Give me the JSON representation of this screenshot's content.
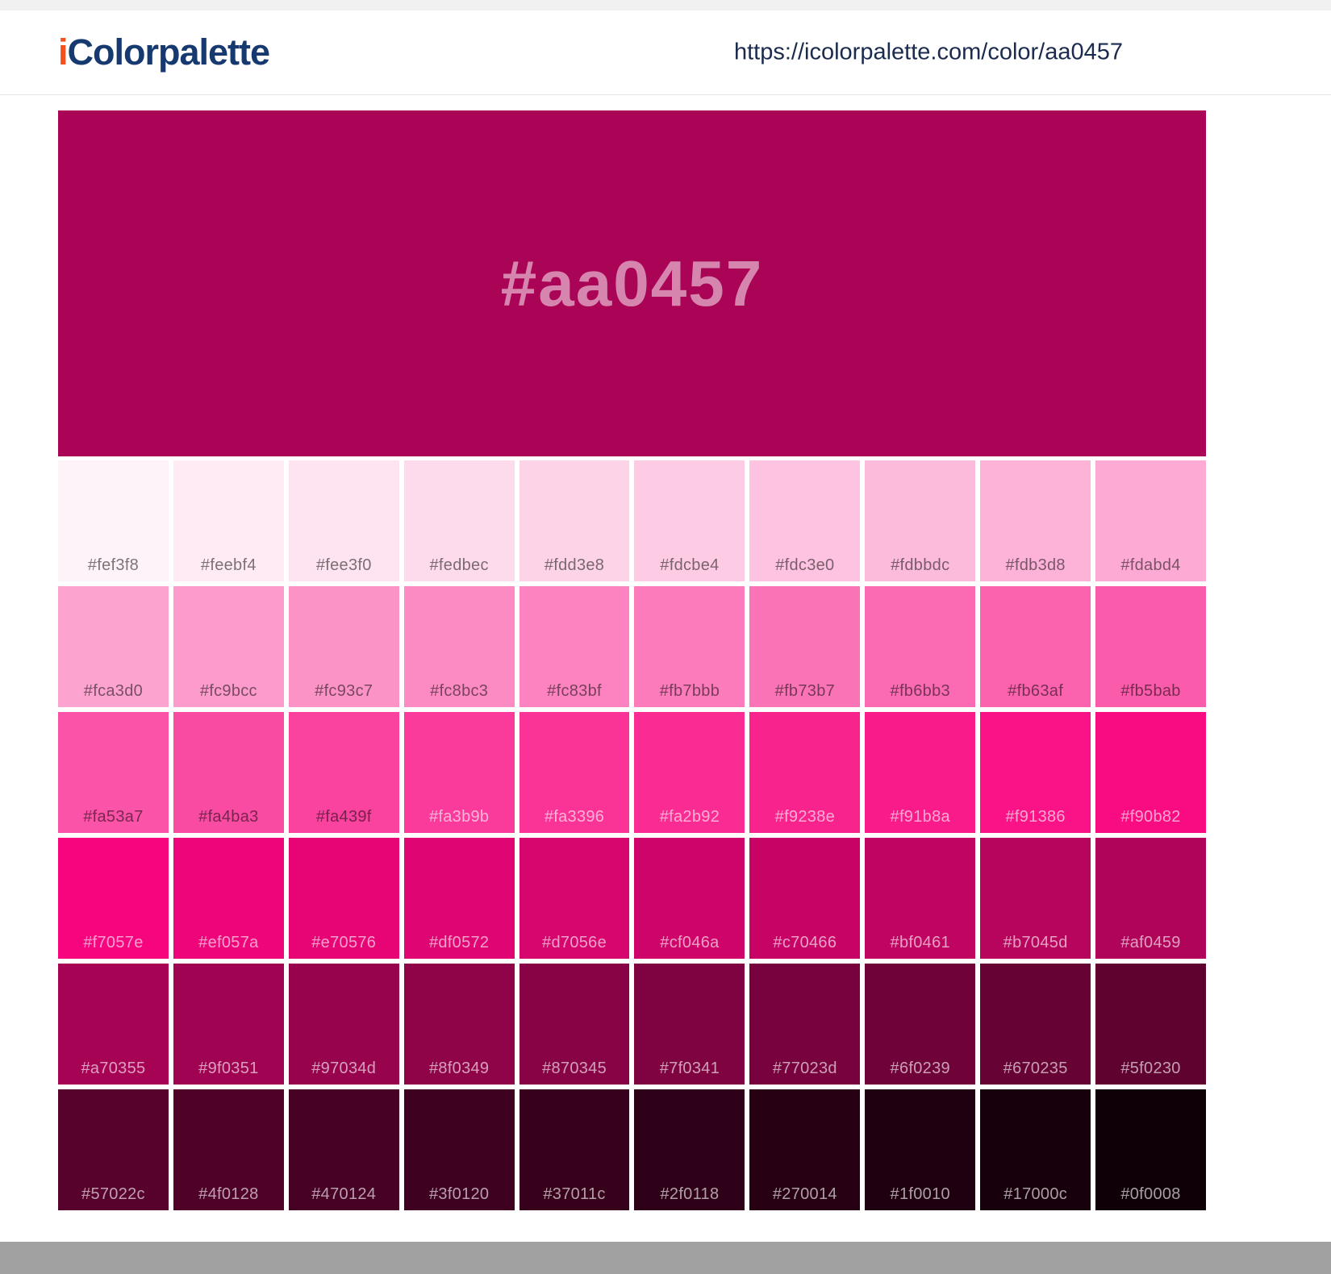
{
  "header": {
    "logo_prefix": "i",
    "logo_rest": "Colorpalette",
    "url": "https://icolorpalette.com/color/aa0457"
  },
  "main_swatch": {
    "hex": "#aa0457",
    "label": "#aa0457"
  },
  "grid": {
    "rows": [
      [
        "#fef3f8",
        "#feebf4",
        "#fee3f0",
        "#fedbec",
        "#fdd3e8",
        "#fdcbe4",
        "#fdc3e0",
        "#fdbbdc",
        "#fdb3d8",
        "#fdabd4"
      ],
      [
        "#fca3d0",
        "#fc9bcc",
        "#fc93c7",
        "#fc8bc3",
        "#fc83bf",
        "#fb7bbb",
        "#fb73b7",
        "#fb6bb3",
        "#fb63af",
        "#fb5bab"
      ],
      [
        "#fa53a7",
        "#fa4ba3",
        "#fa439f",
        "#fa3b9b",
        "#fa3396",
        "#fa2b92",
        "#f9238e",
        "#f91b8a",
        "#f91386",
        "#f90b82"
      ],
      [
        "#f7057e",
        "#ef057a",
        "#e70576",
        "#df0572",
        "#d7056e",
        "#cf046a",
        "#c70466",
        "#bf0461",
        "#b7045d",
        "#af0459"
      ],
      [
        "#a70355",
        "#9f0351",
        "#97034d",
        "#8f0349",
        "#870345",
        "#7f0341",
        "#77023d",
        "#6f0239",
        "#670235",
        "#5f0230"
      ],
      [
        "#57022c",
        "#4f0128",
        "#470124",
        "#3f0120",
        "#37011c",
        "#2f0118",
        "#270014",
        "#1f0010",
        "#17000c",
        "#0f0008"
      ]
    ]
  },
  "colors": {
    "logo_accent": "#f4511e",
    "logo_navy": "#163a70",
    "url_text": "#1b2b4d",
    "label_on_light": "rgba(0,0,0,0.52)",
    "label_on_dark": "rgba(255,255,255,0.62)",
    "topbar_bg": "#f1f1f1",
    "footer_bg": "#a1a1a1"
  }
}
